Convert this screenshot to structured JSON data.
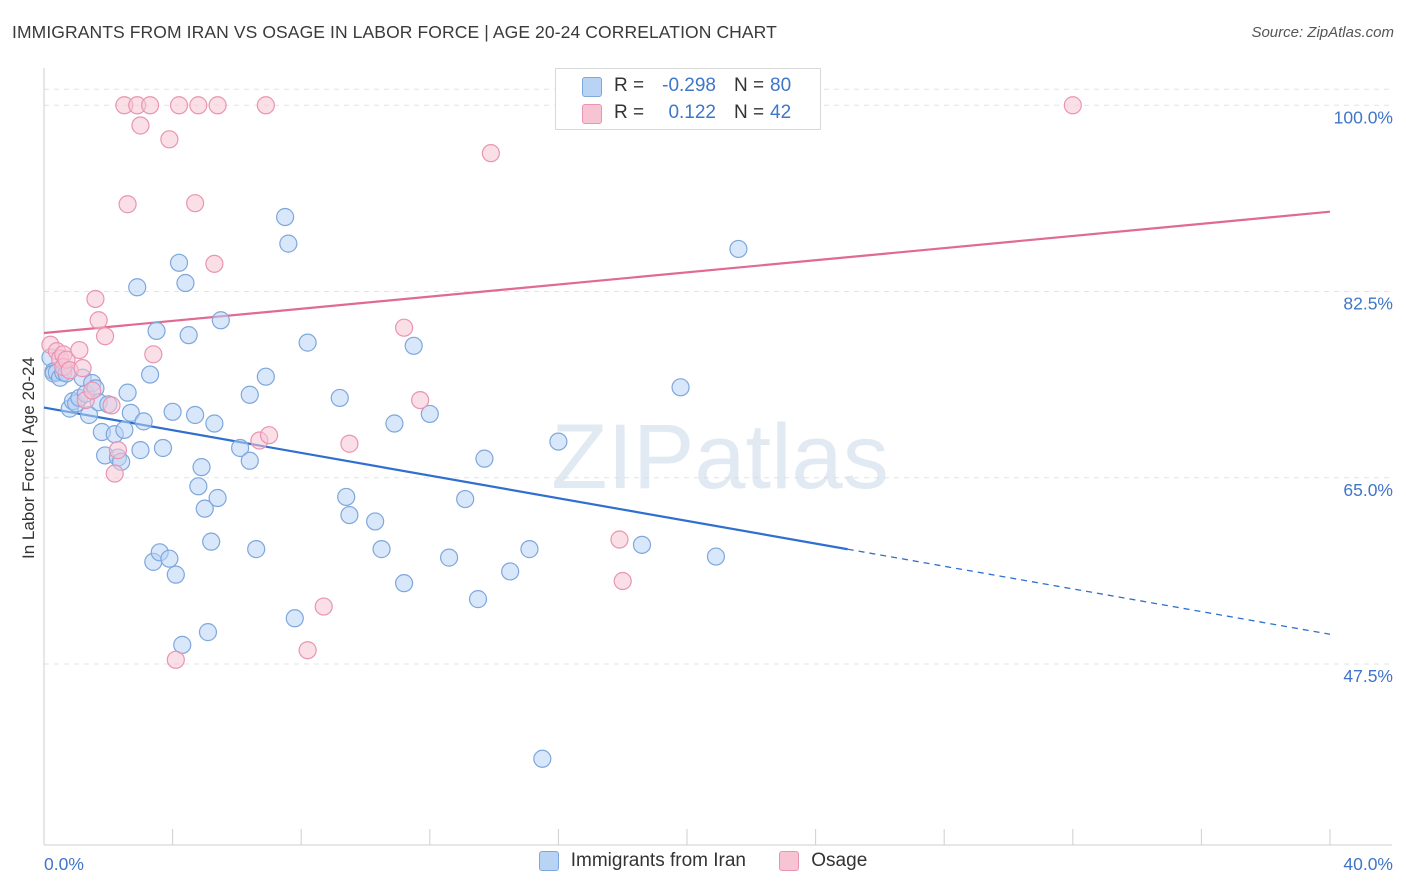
{
  "header": {
    "title": "IMMIGRANTS FROM IRAN VS OSAGE IN LABOR FORCE | AGE 20-24 CORRELATION CHART",
    "source": "Source: ZipAtlas.com"
  },
  "watermark": "ZIPatlas",
  "stats": {
    "rows": [
      {
        "r_label": "R =",
        "r_value": "-0.298",
        "n_label": "N =",
        "n_value": "80"
      },
      {
        "r_label": "R =",
        "r_value": "0.122",
        "n_label": "N =",
        "n_value": "42"
      }
    ]
  },
  "colors": {
    "iran_fill": "#b9d3f5",
    "iran_stroke": "#7ea7dc",
    "iran_line": "#2f6fcf",
    "osage_fill": "#f7c4d4",
    "osage_stroke": "#e994b2",
    "osage_line": "#e06a93",
    "tick_label": "#3f76c8",
    "grid": "#e3e3e3"
  },
  "chart_data": {
    "type": "scatter",
    "ylabel": "In Labor Force | Age 20-24",
    "xlim": [
      0,
      40
    ],
    "ylim": [
      30.5,
      103.5
    ],
    "x_tick_labels": [
      "0.0%",
      "40.0%"
    ],
    "y_ticks": [
      47.5,
      65.0,
      82.5,
      100.0
    ],
    "y_tick_labels": [
      "47.5%",
      "65.0%",
      "82.5%",
      "100.0%"
    ],
    "grid": true,
    "legend": [
      "Immigrants from Iran",
      "Osage"
    ],
    "series": [
      {
        "name": "Immigrants from Iran",
        "trend": {
          "x0": 0.0,
          "y0": 71.6,
          "x_solid_end": 25.0,
          "x1": 40.0,
          "y1": 50.3
        },
        "points": [
          [
            0.2,
            76.3
          ],
          [
            0.3,
            75.0
          ],
          [
            0.3,
            74.8
          ],
          [
            0.4,
            74.9
          ],
          [
            0.5,
            74.4
          ],
          [
            0.6,
            74.9
          ],
          [
            0.7,
            74.8
          ],
          [
            0.8,
            71.5
          ],
          [
            0.9,
            72.2
          ],
          [
            1.0,
            72.0
          ],
          [
            1.1,
            72.5
          ],
          [
            1.2,
            74.4
          ],
          [
            1.3,
            72.9
          ],
          [
            1.4,
            70.9
          ],
          [
            1.5,
            73.9
          ],
          [
            1.6,
            73.4
          ],
          [
            1.7,
            72.1
          ],
          [
            1.8,
            69.3
          ],
          [
            1.9,
            67.1
          ],
          [
            2.0,
            71.9
          ],
          [
            2.2,
            69.1
          ],
          [
            2.3,
            66.9
          ],
          [
            2.4,
            66.5
          ],
          [
            2.5,
            69.5
          ],
          [
            2.6,
            73.0
          ],
          [
            2.7,
            71.1
          ],
          [
            2.9,
            82.9
          ],
          [
            3.0,
            67.6
          ],
          [
            3.1,
            70.3
          ],
          [
            3.3,
            74.7
          ],
          [
            3.4,
            57.1
          ],
          [
            3.5,
            78.8
          ],
          [
            3.6,
            58.0
          ],
          [
            3.7,
            67.8
          ],
          [
            3.9,
            57.4
          ],
          [
            4.0,
            71.2
          ],
          [
            4.1,
            55.9
          ],
          [
            4.2,
            85.2
          ],
          [
            4.3,
            49.3
          ],
          [
            4.4,
            83.3
          ],
          [
            4.5,
            78.4
          ],
          [
            4.7,
            70.9
          ],
          [
            4.8,
            64.2
          ],
          [
            4.9,
            66.0
          ],
          [
            5.0,
            62.1
          ],
          [
            5.1,
            50.5
          ],
          [
            5.2,
            59.0
          ],
          [
            5.3,
            70.1
          ],
          [
            5.4,
            63.1
          ],
          [
            5.5,
            79.8
          ],
          [
            6.1,
            67.8
          ],
          [
            6.4,
            66.6
          ],
          [
            6.4,
            72.8
          ],
          [
            6.6,
            58.3
          ],
          [
            6.9,
            74.5
          ],
          [
            7.5,
            89.5
          ],
          [
            7.6,
            87.0
          ],
          [
            7.8,
            51.8
          ],
          [
            8.2,
            77.7
          ],
          [
            9.2,
            72.5
          ],
          [
            9.4,
            63.2
          ],
          [
            9.5,
            61.5
          ],
          [
            10.3,
            60.9
          ],
          [
            10.5,
            58.3
          ],
          [
            10.9,
            70.1
          ],
          [
            11.2,
            55.1
          ],
          [
            11.5,
            77.4
          ],
          [
            12.0,
            71.0
          ],
          [
            12.6,
            57.5
          ],
          [
            13.1,
            63.0
          ],
          [
            13.5,
            53.6
          ],
          [
            13.7,
            66.8
          ],
          [
            14.5,
            56.2
          ],
          [
            15.1,
            58.3
          ],
          [
            15.5,
            38.6
          ],
          [
            16.0,
            68.4
          ],
          [
            18.6,
            58.7
          ],
          [
            19.8,
            73.5
          ],
          [
            20.9,
            57.6
          ],
          [
            21.6,
            86.5
          ]
        ]
      },
      {
        "name": "Osage",
        "trend": {
          "x0": 0.0,
          "y0": 78.6,
          "x1": 40.0,
          "y1": 90.0
        },
        "points": [
          [
            0.2,
            77.5
          ],
          [
            0.4,
            76.9
          ],
          [
            0.5,
            76.2
          ],
          [
            0.6,
            76.6
          ],
          [
            0.6,
            75.4
          ],
          [
            0.7,
            76.1
          ],
          [
            0.8,
            75.1
          ],
          [
            1.1,
            77.0
          ],
          [
            1.2,
            75.3
          ],
          [
            1.3,
            72.3
          ],
          [
            1.5,
            73.2
          ],
          [
            1.6,
            81.8
          ],
          [
            1.7,
            79.8
          ],
          [
            1.9,
            78.3
          ],
          [
            2.1,
            71.8
          ],
          [
            2.2,
            65.4
          ],
          [
            2.3,
            67.6
          ],
          [
            2.5,
            100.0
          ],
          [
            2.6,
            90.7
          ],
          [
            2.9,
            100.0
          ],
          [
            3.0,
            98.1
          ],
          [
            3.3,
            100.0
          ],
          [
            3.4,
            76.6
          ],
          [
            3.9,
            96.8
          ],
          [
            4.1,
            47.9
          ],
          [
            4.2,
            100.0
          ],
          [
            4.7,
            90.8
          ],
          [
            4.8,
            100.0
          ],
          [
            5.3,
            85.1
          ],
          [
            5.4,
            100.0
          ],
          [
            6.7,
            68.5
          ],
          [
            7.0,
            69.0
          ],
          [
            6.9,
            100.0
          ],
          [
            8.2,
            48.8
          ],
          [
            8.7,
            52.9
          ],
          [
            9.5,
            68.2
          ],
          [
            11.2,
            79.1
          ],
          [
            11.7,
            72.3
          ],
          [
            13.9,
            95.5
          ],
          [
            17.9,
            59.2
          ],
          [
            18.0,
            55.3
          ],
          [
            32.0,
            100.0
          ]
        ]
      }
    ]
  }
}
